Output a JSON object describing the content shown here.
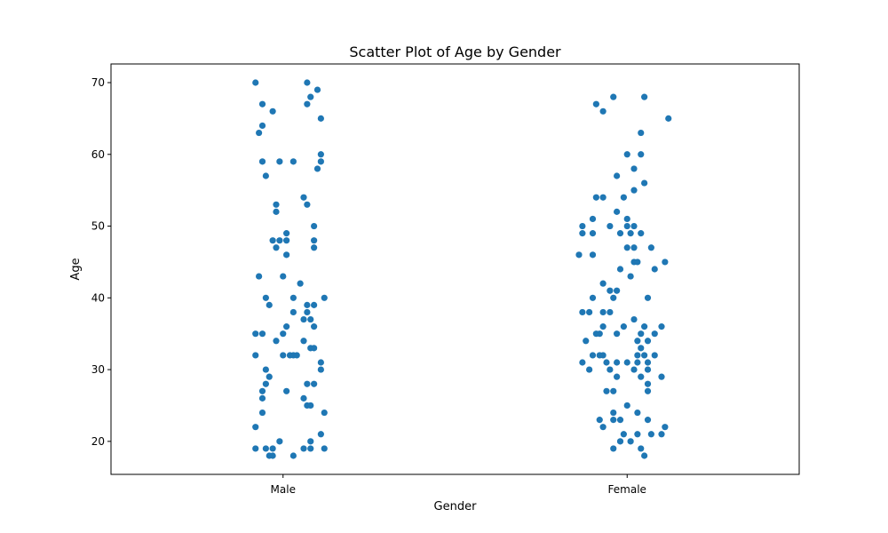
{
  "chart_data": {
    "type": "scatter",
    "title": "Scatter Plot of Age by Gender",
    "xlabel": "Gender",
    "ylabel": "Age",
    "categories": [
      "Male",
      "Female"
    ],
    "yticks": [
      20,
      30,
      40,
      50,
      60,
      70
    ],
    "ylim": [
      15.4,
      72.6
    ],
    "grid": false,
    "point_color": "#1f77b4",
    "series": [
      {
        "category": "Male",
        "points": [
          {
            "x": -0.08,
            "y": 70
          },
          {
            "x": 0.07,
            "y": 70
          },
          {
            "x": 0.1,
            "y": 69
          },
          {
            "x": 0.08,
            "y": 68
          },
          {
            "x": -0.06,
            "y": 67
          },
          {
            "x": 0.07,
            "y": 67
          },
          {
            "x": -0.03,
            "y": 66
          },
          {
            "x": 0.11,
            "y": 65
          },
          {
            "x": -0.06,
            "y": 64
          },
          {
            "x": -0.07,
            "y": 63
          },
          {
            "x": 0.11,
            "y": 60
          },
          {
            "x": -0.06,
            "y": 59
          },
          {
            "x": -0.01,
            "y": 59
          },
          {
            "x": 0.03,
            "y": 59
          },
          {
            "x": 0.11,
            "y": 59
          },
          {
            "x": 0.1,
            "y": 58
          },
          {
            "x": -0.05,
            "y": 57
          },
          {
            "x": 0.06,
            "y": 54
          },
          {
            "x": 0.07,
            "y": 53
          },
          {
            "x": -0.02,
            "y": 53
          },
          {
            "x": -0.02,
            "y": 52
          },
          {
            "x": 0.09,
            "y": 50
          },
          {
            "x": 0.01,
            "y": 49
          },
          {
            "x": -0.03,
            "y": 48
          },
          {
            "x": -0.01,
            "y": 48
          },
          {
            "x": 0.01,
            "y": 48
          },
          {
            "x": 0.09,
            "y": 48
          },
          {
            "x": -0.02,
            "y": 47
          },
          {
            "x": 0.09,
            "y": 47
          },
          {
            "x": 0.01,
            "y": 46
          },
          {
            "x": -0.07,
            "y": 43
          },
          {
            "x": 0.0,
            "y": 43
          },
          {
            "x": 0.05,
            "y": 42
          },
          {
            "x": -0.05,
            "y": 40
          },
          {
            "x": 0.03,
            "y": 40
          },
          {
            "x": 0.12,
            "y": 40
          },
          {
            "x": -0.04,
            "y": 39
          },
          {
            "x": 0.07,
            "y": 39
          },
          {
            "x": 0.09,
            "y": 39
          },
          {
            "x": 0.03,
            "y": 38
          },
          {
            "x": 0.07,
            "y": 38
          },
          {
            "x": 0.06,
            "y": 37
          },
          {
            "x": 0.08,
            "y": 37
          },
          {
            "x": 0.01,
            "y": 36
          },
          {
            "x": 0.09,
            "y": 36
          },
          {
            "x": -0.08,
            "y": 35
          },
          {
            "x": -0.06,
            "y": 35
          },
          {
            "x": 0.0,
            "y": 35
          },
          {
            "x": -0.02,
            "y": 34
          },
          {
            "x": 0.06,
            "y": 34
          },
          {
            "x": 0.08,
            "y": 33
          },
          {
            "x": 0.09,
            "y": 33
          },
          {
            "x": -0.08,
            "y": 32
          },
          {
            "x": 0.0,
            "y": 32
          },
          {
            "x": 0.02,
            "y": 32
          },
          {
            "x": 0.03,
            "y": 32
          },
          {
            "x": 0.04,
            "y": 32
          },
          {
            "x": 0.11,
            "y": 31
          },
          {
            "x": -0.05,
            "y": 30
          },
          {
            "x": 0.11,
            "y": 30
          },
          {
            "x": -0.04,
            "y": 29
          },
          {
            "x": -0.05,
            "y": 28
          },
          {
            "x": 0.07,
            "y": 28
          },
          {
            "x": 0.09,
            "y": 28
          },
          {
            "x": -0.06,
            "y": 27
          },
          {
            "x": 0.01,
            "y": 27
          },
          {
            "x": -0.06,
            "y": 26
          },
          {
            "x": 0.06,
            "y": 26
          },
          {
            "x": 0.07,
            "y": 25
          },
          {
            "x": 0.08,
            "y": 25
          },
          {
            "x": -0.06,
            "y": 24
          },
          {
            "x": 0.12,
            "y": 24
          },
          {
            "x": -0.08,
            "y": 22
          },
          {
            "x": 0.11,
            "y": 21
          },
          {
            "x": -0.01,
            "y": 20
          },
          {
            "x": 0.08,
            "y": 20
          },
          {
            "x": -0.08,
            "y": 19
          },
          {
            "x": -0.05,
            "y": 19
          },
          {
            "x": -0.03,
            "y": 19
          },
          {
            "x": 0.06,
            "y": 19
          },
          {
            "x": 0.08,
            "y": 19
          },
          {
            "x": 0.12,
            "y": 19
          },
          {
            "x": -0.04,
            "y": 18
          },
          {
            "x": -0.03,
            "y": 18
          },
          {
            "x": 0.03,
            "y": 18
          }
        ]
      },
      {
        "category": "Female",
        "points": [
          {
            "x": 0.96,
            "y": 68
          },
          {
            "x": 1.05,
            "y": 68
          },
          {
            "x": 0.91,
            "y": 67
          },
          {
            "x": 0.93,
            "y": 66
          },
          {
            "x": 1.12,
            "y": 65
          },
          {
            "x": 1.04,
            "y": 63
          },
          {
            "x": 1.0,
            "y": 60
          },
          {
            "x": 1.04,
            "y": 60
          },
          {
            "x": 1.02,
            "y": 58
          },
          {
            "x": 0.97,
            "y": 57
          },
          {
            "x": 1.05,
            "y": 56
          },
          {
            "x": 1.02,
            "y": 55
          },
          {
            "x": 0.91,
            "y": 54
          },
          {
            "x": 0.93,
            "y": 54
          },
          {
            "x": 0.99,
            "y": 54
          },
          {
            "x": 0.97,
            "y": 52
          },
          {
            "x": 0.9,
            "y": 51
          },
          {
            "x": 1.0,
            "y": 51
          },
          {
            "x": 0.87,
            "y": 50
          },
          {
            "x": 0.95,
            "y": 50
          },
          {
            "x": 1.0,
            "y": 50
          },
          {
            "x": 1.02,
            "y": 50
          },
          {
            "x": 0.87,
            "y": 49
          },
          {
            "x": 0.9,
            "y": 49
          },
          {
            "x": 0.98,
            "y": 49
          },
          {
            "x": 1.01,
            "y": 49
          },
          {
            "x": 1.04,
            "y": 49
          },
          {
            "x": 1.07,
            "y": 47
          },
          {
            "x": 1.0,
            "y": 47
          },
          {
            "x": 1.02,
            "y": 47
          },
          {
            "x": 0.86,
            "y": 46
          },
          {
            "x": 0.9,
            "y": 46
          },
          {
            "x": 1.02,
            "y": 45
          },
          {
            "x": 1.03,
            "y": 45
          },
          {
            "x": 1.11,
            "y": 45
          },
          {
            "x": 0.98,
            "y": 44
          },
          {
            "x": 1.08,
            "y": 44
          },
          {
            "x": 1.01,
            "y": 43
          },
          {
            "x": 0.93,
            "y": 42
          },
          {
            "x": 0.95,
            "y": 41
          },
          {
            "x": 0.97,
            "y": 41
          },
          {
            "x": 0.9,
            "y": 40
          },
          {
            "x": 0.96,
            "y": 40
          },
          {
            "x": 1.06,
            "y": 40
          },
          {
            "x": 0.87,
            "y": 38
          },
          {
            "x": 0.89,
            "y": 38
          },
          {
            "x": 0.93,
            "y": 38
          },
          {
            "x": 0.95,
            "y": 38
          },
          {
            "x": 1.02,
            "y": 37
          },
          {
            "x": 0.93,
            "y": 36
          },
          {
            "x": 0.99,
            "y": 36
          },
          {
            "x": 1.05,
            "y": 36
          },
          {
            "x": 1.1,
            "y": 36
          },
          {
            "x": 0.91,
            "y": 35
          },
          {
            "x": 0.92,
            "y": 35
          },
          {
            "x": 0.97,
            "y": 35
          },
          {
            "x": 1.04,
            "y": 35
          },
          {
            "x": 1.08,
            "y": 35
          },
          {
            "x": 0.88,
            "y": 34
          },
          {
            "x": 1.03,
            "y": 34
          },
          {
            "x": 1.06,
            "y": 34
          },
          {
            "x": 1.04,
            "y": 33
          },
          {
            "x": 0.9,
            "y": 32
          },
          {
            "x": 0.92,
            "y": 32
          },
          {
            "x": 0.93,
            "y": 32
          },
          {
            "x": 1.03,
            "y": 32
          },
          {
            "x": 1.05,
            "y": 32
          },
          {
            "x": 1.08,
            "y": 32
          },
          {
            "x": 0.87,
            "y": 31
          },
          {
            "x": 0.94,
            "y": 31
          },
          {
            "x": 0.97,
            "y": 31
          },
          {
            "x": 1.0,
            "y": 31
          },
          {
            "x": 1.03,
            "y": 31
          },
          {
            "x": 1.06,
            "y": 31
          },
          {
            "x": 0.89,
            "y": 30
          },
          {
            "x": 0.95,
            "y": 30
          },
          {
            "x": 1.02,
            "y": 30
          },
          {
            "x": 1.06,
            "y": 30
          },
          {
            "x": 0.97,
            "y": 29
          },
          {
            "x": 1.04,
            "y": 29
          },
          {
            "x": 1.1,
            "y": 29
          },
          {
            "x": 1.06,
            "y": 28
          },
          {
            "x": 0.94,
            "y": 27
          },
          {
            "x": 0.96,
            "y": 27
          },
          {
            "x": 1.06,
            "y": 27
          },
          {
            "x": 1.0,
            "y": 25
          },
          {
            "x": 0.96,
            "y": 24
          },
          {
            "x": 1.03,
            "y": 24
          },
          {
            "x": 0.92,
            "y": 23
          },
          {
            "x": 0.96,
            "y": 23
          },
          {
            "x": 0.98,
            "y": 23
          },
          {
            "x": 1.06,
            "y": 23
          },
          {
            "x": 0.93,
            "y": 22
          },
          {
            "x": 1.11,
            "y": 22
          },
          {
            "x": 0.99,
            "y": 21
          },
          {
            "x": 1.03,
            "y": 21
          },
          {
            "x": 1.07,
            "y": 21
          },
          {
            "x": 1.1,
            "y": 21
          },
          {
            "x": 0.98,
            "y": 20
          },
          {
            "x": 1.01,
            "y": 20
          },
          {
            "x": 0.96,
            "y": 19
          },
          {
            "x": 1.04,
            "y": 19
          },
          {
            "x": 1.05,
            "y": 18
          }
        ]
      }
    ]
  }
}
